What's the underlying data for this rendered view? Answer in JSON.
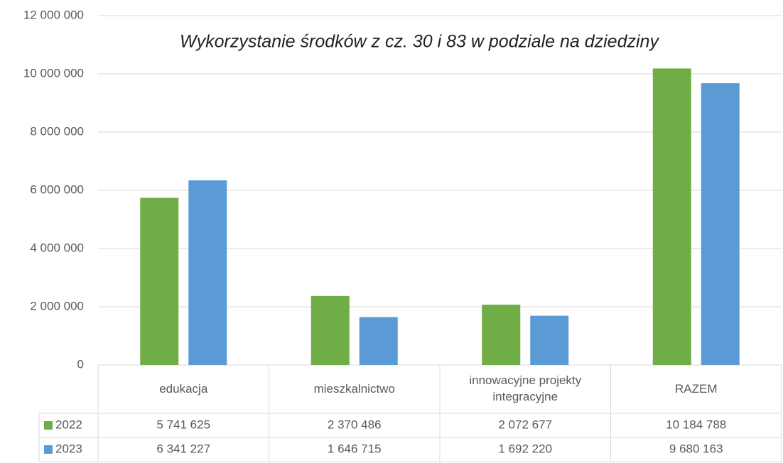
{
  "chart_data": {
    "type": "bar",
    "title": "Wykorzystanie środków z cz. 30 i 83 w podziale na dziedziny",
    "categories": [
      "edukacja",
      "mieszkalnictwo",
      "innowacyjne projekty integracyjne",
      "RAZEM"
    ],
    "series": [
      {
        "name": "2022",
        "color": "#70ad47",
        "values": [
          5741625,
          2370486,
          2072677,
          10184788
        ],
        "value_labels": [
          "5 741 625",
          "2 370 486",
          "2 072 677",
          "10 184 788"
        ]
      },
      {
        "name": "2023",
        "color": "#5b9bd5",
        "values": [
          6341227,
          1646715,
          1692220,
          9680163
        ],
        "value_labels": [
          "6 341 227",
          "1 646 715",
          "1 692 220",
          "9 680 163"
        ]
      }
    ],
    "ylim": [
      0,
      12000000
    ],
    "yticks": [
      0,
      {
        "value": 2000000,
        "label": "2 000 000"
      },
      {
        "value": 4000000,
        "label": "4 000 000"
      },
      {
        "value": 6000000,
        "label": "6 000 000"
      },
      {
        "value": 8000000,
        "label": "8 000 000"
      },
      {
        "value": 10000000,
        "label": "10 000 000"
      },
      {
        "value": 12000000,
        "label": "12 000 000"
      }
    ],
    "grid": true
  }
}
